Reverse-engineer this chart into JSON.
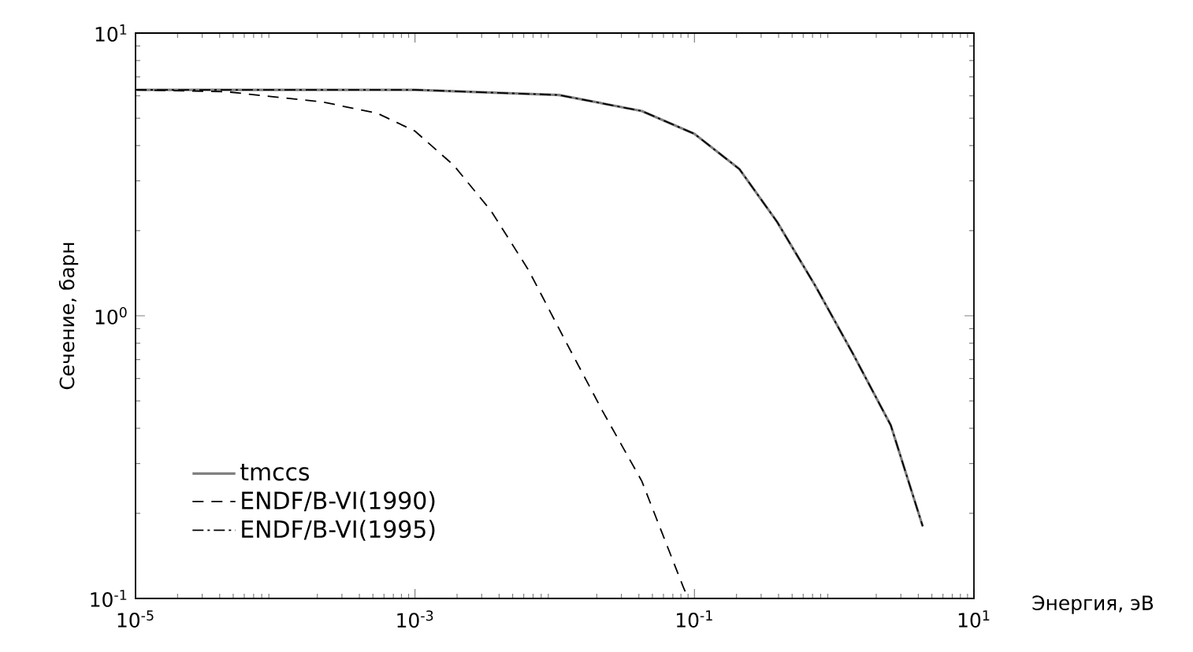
{
  "chart_data": {
    "type": "line",
    "xlabel": "Энергия, эВ",
    "ylabel": "Сечение, барн",
    "log": "xy",
    "xlim": [
      1e-05,
      10
    ],
    "ylim": [
      0.1,
      10
    ],
    "xticks": [
      {
        "value": 1e-05,
        "label": "10$^{-5}$"
      },
      {
        "value": 0.001,
        "label": "10$^{-3}$"
      },
      {
        "value": 0.1,
        "label": "10$^{-1}$"
      },
      {
        "value": 10,
        "label": "10$^{1}$"
      }
    ],
    "yticks": [
      {
        "value": 0.1,
        "label": "10$^{-1}$"
      },
      {
        "value": 1,
        "label": "10$^{0}$"
      },
      {
        "value": 10,
        "label": "10$^{1}$"
      }
    ],
    "grid": false,
    "legend": "bottom left",
    "marker": "none",
    "series": [
      {
        "name": "tmccs",
        "color": "#808080",
        "line_style": "solid",
        "x": [
          1e-05,
          0.001,
          0.0107,
          0.042,
          0.1,
          0.21,
          0.39,
          0.73,
          1.36,
          2.54,
          4.3
        ],
        "values": [
          6.3,
          6.3,
          6.04,
          5.3,
          4.4,
          3.3,
          2.15,
          1.28,
          0.735,
          0.41,
          0.18
        ]
      },
      {
        "name": "ENDF/B-VI(1990)",
        "color": "#000000",
        "line_style": "dashed",
        "x": [
          1e-05,
          4.5e-05,
          0.00022,
          0.00054,
          0.001,
          0.0019,
          0.0035,
          0.0065,
          0.012,
          0.022,
          0.042,
          0.083,
          0.09
        ],
        "values": [
          6.3,
          6.2,
          5.7,
          5.2,
          4.5,
          3.4,
          2.35,
          1.45,
          0.81,
          0.46,
          0.26,
          0.11,
          0.1
        ]
      },
      {
        "name": "ENDF/B-VI(1995)",
        "color": "#000000",
        "line_style": "dashdot",
        "x": [
          1e-05,
          0.001,
          0.0107,
          0.042,
          0.1,
          0.21,
          0.39,
          0.73,
          1.36,
          2.54,
          4.3
        ],
        "values": [
          6.3,
          6.3,
          6.04,
          5.3,
          4.4,
          3.3,
          2.15,
          1.28,
          0.735,
          0.41,
          0.18
        ]
      }
    ]
  }
}
